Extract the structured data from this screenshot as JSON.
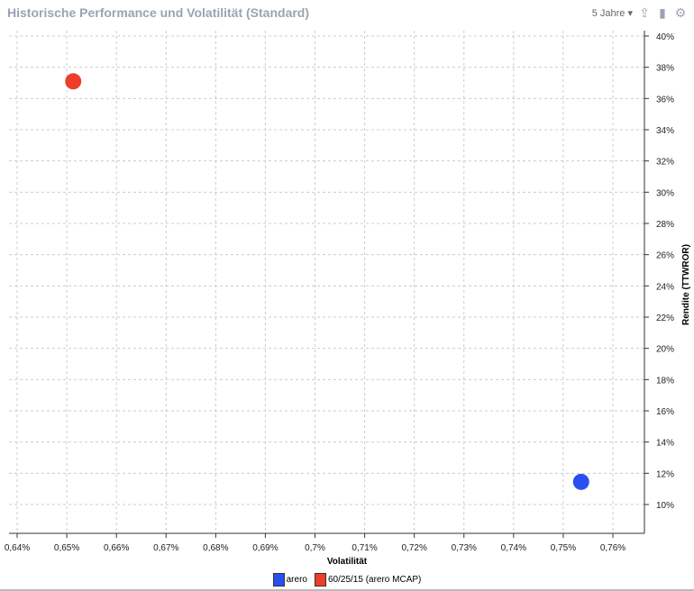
{
  "header": {
    "title": "Historische Performance und Volatilität (Standard)",
    "period": "5 Jahre",
    "icons": [
      "export-icon",
      "bookmark-icon",
      "gear-icon"
    ]
  },
  "chart_data": {
    "type": "scatter",
    "title": "Historische Performance und Volatilität (Standard)",
    "xlabel": "Volatilität",
    "ylabel": "Rendite (TTWROR)",
    "xlim": [
      0.64,
      0.7663
    ],
    "ylim": [
      8.2,
      40
    ],
    "xticks": [
      0.64,
      0.65,
      0.66,
      0.67,
      0.68,
      0.69,
      0.7,
      0.71,
      0.72,
      0.73,
      0.74,
      0.75,
      0.76
    ],
    "xtick_labels": [
      "0,64%",
      "0,65%",
      "0,66%",
      "0,67%",
      "0,68%",
      "0,69%",
      "0,7%",
      "0,71%",
      "0,72%",
      "0,73%",
      "0,74%",
      "0,75%",
      "0,76%"
    ],
    "yticks": [
      10,
      12,
      14,
      16,
      18,
      20,
      22,
      24,
      26,
      28,
      30,
      32,
      34,
      36,
      38,
      40
    ],
    "ytick_labels": [
      "10%",
      "12%",
      "14%",
      "16%",
      "18%",
      "20%",
      "22%",
      "24%",
      "26%",
      "28%",
      "30%",
      "32%",
      "34%",
      "36%",
      "38%",
      "40%"
    ],
    "grid": true,
    "legend_position": "bottom",
    "series": [
      {
        "name": "arero",
        "color": "#2a4ff0",
        "points": [
          {
            "x": 0.7536,
            "y": 11.45
          }
        ]
      },
      {
        "name": "60/25/15 (arero MCAP)",
        "color": "#ee3e2a",
        "points": [
          {
            "x": 0.6513,
            "y": 37.1
          }
        ]
      }
    ]
  }
}
